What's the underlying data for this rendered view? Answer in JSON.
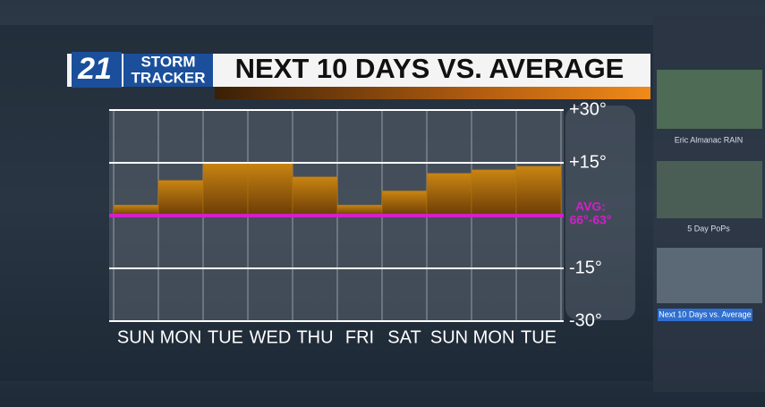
{
  "logo": {
    "number": "21",
    "line1": "STORM",
    "line2": "TRACKER"
  },
  "sidebar": {
    "items": [
      "Eric Almanac RAIN",
      "5 Day PoPs",
      "Next 10 Days vs. Average"
    ]
  },
  "chart_data": {
    "type": "bar",
    "title": "NEXT 10 DAYS VS. AVERAGE",
    "categories": [
      "SUN",
      "MON",
      "TUE",
      "WED",
      "THU",
      "FRI",
      "SAT",
      "SUN",
      "MON",
      "TUE"
    ],
    "values": [
      3,
      10,
      15,
      15,
      11,
      3,
      7,
      12,
      13,
      14
    ],
    "color": "#b8760f",
    "ylim": [
      -30,
      30
    ],
    "yticks": [
      {
        "value": 30,
        "label": "+30°"
      },
      {
        "value": 15,
        "label": "+15°"
      },
      {
        "value": 0,
        "label": "AVG:"
      },
      {
        "value": -15,
        "label": "-15°"
      },
      {
        "value": -30,
        "label": "-30°"
      }
    ],
    "average_label": "66°-63°",
    "average_color": "#d21fc8",
    "grid": true
  }
}
